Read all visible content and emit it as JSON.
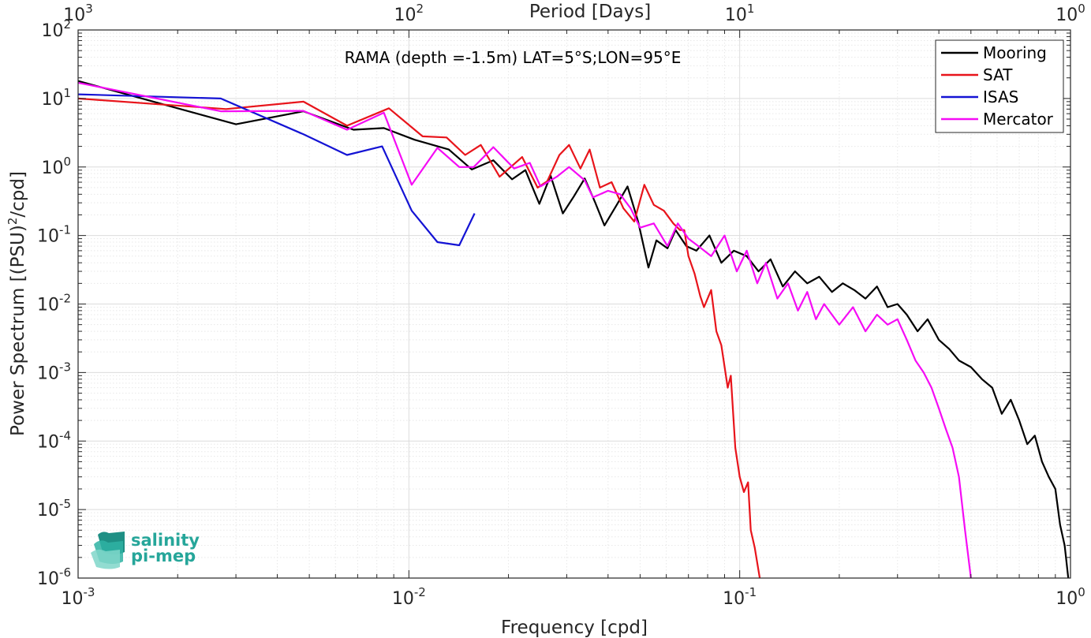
{
  "chart_data": {
    "type": "line",
    "title": "RAMA (depth =-1.5m) LAT=5°S;LON=95°E",
    "xlabel": "Frequency [cpd]",
    "ylabel": "Power Spectrum [(PSU)^2/cpd]",
    "x2label": "Period [Days]",
    "x_scale": "log",
    "y_scale": "log",
    "xlim": [
      0.001,
      1
    ],
    "ylim": [
      1e-06,
      100
    ],
    "grid": true,
    "legend_position": "top-right",
    "x_ticks": [
      {
        "base": "10",
        "exp": "-3"
      },
      {
        "base": "10",
        "exp": "-2"
      },
      {
        "base": "10",
        "exp": "-1"
      },
      {
        "base": "10",
        "exp": "0"
      }
    ],
    "x2_ticks": [
      {
        "base": "10",
        "exp": "3"
      },
      {
        "base": "10",
        "exp": "2"
      },
      {
        "base": "10",
        "exp": "1"
      },
      {
        "base": "10",
        "exp": "0"
      }
    ],
    "y_ticks": [
      {
        "base": "10",
        "exp": "-6"
      },
      {
        "base": "10",
        "exp": "-5"
      },
      {
        "base": "10",
        "exp": "-4"
      },
      {
        "base": "10",
        "exp": "-3"
      },
      {
        "base": "10",
        "exp": "-2"
      },
      {
        "base": "10",
        "exp": "-1"
      },
      {
        "base": "10",
        "exp": "0"
      },
      {
        "base": "10",
        "exp": "1"
      },
      {
        "base": "10",
        "exp": "2"
      }
    ],
    "series": [
      {
        "name": "Mooring",
        "color": "#000000",
        "x": [
          0.001,
          0.003,
          0.0048,
          0.0068,
          0.0084,
          0.0104,
          0.0132,
          0.0155,
          0.018,
          0.0205,
          0.0225,
          0.0248,
          0.0268,
          0.0292,
          0.0315,
          0.034,
          0.0365,
          0.039,
          0.0425,
          0.0458,
          0.0493,
          0.053,
          0.056,
          0.0605,
          0.064,
          0.069,
          0.074,
          0.081,
          0.088,
          0.096,
          0.105,
          0.114,
          0.124,
          0.135,
          0.147,
          0.16,
          0.174,
          0.19,
          0.205,
          0.222,
          0.24,
          0.26,
          0.28,
          0.3,
          0.32,
          0.345,
          0.37,
          0.4,
          0.43,
          0.46,
          0.5,
          0.54,
          0.58,
          0.62,
          0.66,
          0.7,
          0.74,
          0.78,
          0.82,
          0.86,
          0.9,
          0.93,
          0.96,
          0.985
        ],
        "y": [
          18,
          4.2,
          6.5,
          3.5,
          3.7,
          2.5,
          1.8,
          0.92,
          1.25,
          0.66,
          0.9,
          0.29,
          0.75,
          0.21,
          0.37,
          0.68,
          0.31,
          0.14,
          0.28,
          0.52,
          0.16,
          0.034,
          0.085,
          0.065,
          0.12,
          0.07,
          0.06,
          0.1,
          0.04,
          0.06,
          0.05,
          0.03,
          0.045,
          0.018,
          0.03,
          0.02,
          0.025,
          0.015,
          0.02,
          0.016,
          0.012,
          0.018,
          0.009,
          0.01,
          0.007,
          0.004,
          0.006,
          0.003,
          0.0022,
          0.0015,
          0.0012,
          0.0008,
          0.0006,
          0.00025,
          0.0004,
          0.0002,
          9e-05,
          0.00012,
          5e-05,
          3e-05,
          2e-05,
          6e-06,
          3e-06,
          1e-06
        ]
      },
      {
        "name": "SAT",
        "color": "#e8141b",
        "x": [
          0.001,
          0.0028,
          0.0048,
          0.0065,
          0.0087,
          0.011,
          0.013,
          0.0148,
          0.0165,
          0.0188,
          0.022,
          0.0245,
          0.0262,
          0.0285,
          0.0305,
          0.033,
          0.0352,
          0.0378,
          0.041,
          0.0445,
          0.048,
          0.0515,
          0.055,
          0.059,
          0.063,
          0.066,
          0.068,
          0.07,
          0.073,
          0.076,
          0.078,
          0.082,
          0.085,
          0.088,
          0.092,
          0.094,
          0.097,
          0.1,
          0.103,
          0.106,
          0.108,
          0.111,
          0.115
        ],
        "y": [
          10,
          7,
          9,
          4,
          7.2,
          2.8,
          2.7,
          1.5,
          2.1,
          0.72,
          1.4,
          0.5,
          0.62,
          1.5,
          2.1,
          0.95,
          1.8,
          0.5,
          0.6,
          0.25,
          0.16,
          0.55,
          0.28,
          0.23,
          0.15,
          0.12,
          0.12,
          0.05,
          0.028,
          0.013,
          0.009,
          0.016,
          0.004,
          0.0025,
          0.0006,
          0.0009,
          8e-05,
          3e-05,
          1.8e-05,
          2.5e-05,
          5e-06,
          2.8e-06,
          1e-06
        ]
      },
      {
        "name": "ISAS",
        "color": "#1413d4",
        "x": [
          0.001,
          0.0027,
          0.0048,
          0.0065,
          0.0083,
          0.0102,
          0.0122,
          0.0142,
          0.0158
        ],
        "y": [
          11.5,
          10,
          3,
          1.5,
          2,
          0.23,
          0.08,
          0.072,
          0.21
        ]
      },
      {
        "name": "Mercator",
        "color": "#f50cf5",
        "x": [
          0.001,
          0.0027,
          0.0048,
          0.0065,
          0.0084,
          0.0102,
          0.0122,
          0.0142,
          0.0157,
          0.018,
          0.0208,
          0.0232,
          0.025,
          0.028,
          0.0305,
          0.034,
          0.036,
          0.04,
          0.0435,
          0.0468,
          0.05,
          0.055,
          0.0605,
          0.065,
          0.07,
          0.075,
          0.082,
          0.09,
          0.098,
          0.105,
          0.113,
          0.12,
          0.13,
          0.14,
          0.15,
          0.16,
          0.17,
          0.18,
          0.2,
          0.22,
          0.24,
          0.26,
          0.28,
          0.3,
          0.32,
          0.34,
          0.36,
          0.38,
          0.4,
          0.42,
          0.44,
          0.46,
          0.48,
          0.5
        ],
        "y": [
          17,
          6.5,
          6.6,
          3.5,
          6.2,
          0.55,
          1.9,
          1,
          1,
          1.95,
          0.95,
          1.15,
          0.52,
          0.72,
          1,
          0.64,
          0.36,
          0.45,
          0.4,
          0.25,
          0.13,
          0.15,
          0.07,
          0.15,
          0.09,
          0.07,
          0.05,
          0.1,
          0.03,
          0.06,
          0.02,
          0.04,
          0.012,
          0.02,
          0.008,
          0.015,
          0.006,
          0.01,
          0.005,
          0.009,
          0.004,
          0.007,
          0.005,
          0.006,
          0.003,
          0.0015,
          0.001,
          0.0006,
          0.0003,
          0.00015,
          8e-05,
          3e-05,
          5e-06,
          1e-06
        ]
      }
    ]
  },
  "logo": {
    "line1": "salinity",
    "line2": "pi-mep",
    "color": "#26a69a"
  }
}
